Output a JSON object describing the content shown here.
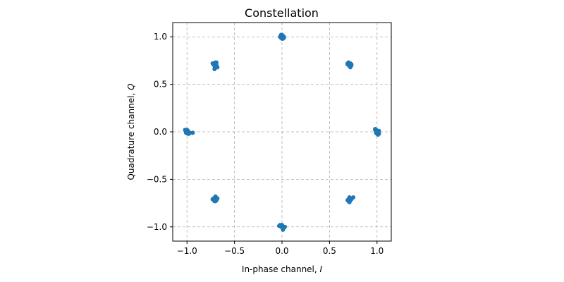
{
  "chart_data": {
    "type": "scatter",
    "title": "Constellation",
    "xlabel": "In-phase channel, ",
    "xlabel_var": "I",
    "ylabel": "Quadrature channel, ",
    "ylabel_var": "Q",
    "xlim": [
      -1.15,
      1.15
    ],
    "ylim": [
      -1.15,
      1.15
    ],
    "xticks": [
      -1.0,
      -0.5,
      0.0,
      0.5,
      1.0
    ],
    "xtick_labels": [
      "−1.0",
      "−0.5",
      "0.0",
      "0.5",
      "1.0"
    ],
    "yticks": [
      -1.0,
      -0.5,
      0.0,
      0.5,
      1.0
    ],
    "ytick_labels": [
      "−1.0",
      "−0.5",
      "0.0",
      "0.5",
      "1.0"
    ],
    "grid": true,
    "color": "#1f77b4",
    "series": [
      {
        "x": [
          1.0,
          0.99,
          1.01,
          1.02,
          0.98,
          1.0,
          1.01,
          0.99,
          1.0,
          1.02,
          0.98,
          1.01,
          0.707,
          0.69,
          0.72,
          0.71,
          0.73,
          0.7,
          0.72,
          0.71,
          0.69,
          0.72,
          0.73,
          0.71,
          0.0,
          -0.01,
          0.02,
          0.01,
          -0.02,
          0.0,
          0.01,
          -0.01,
          0.02,
          0.0,
          -0.01,
          0.01,
          -0.707,
          -0.72,
          -0.69,
          -0.7,
          -0.71,
          -0.73,
          -0.69,
          -0.71,
          -0.7,
          -0.72,
          -0.68,
          -0.7,
          -1.0,
          -0.99,
          -1.01,
          -1.02,
          -0.98,
          -1.0,
          -0.97,
          -1.01,
          -0.99,
          -1.0,
          -0.94,
          -1.01,
          -0.707,
          -0.72,
          -0.69,
          -0.7,
          -0.71,
          -0.73,
          -0.69,
          -0.71,
          -0.7,
          -0.72,
          -0.68,
          -0.7,
          0.0,
          -0.01,
          0.02,
          0.01,
          -0.02,
          0.0,
          0.02,
          -0.03,
          0.03,
          0.01,
          -0.01,
          0.0,
          0.707,
          0.69,
          0.72,
          0.71,
          0.73,
          0.7,
          0.72,
          0.71,
          0.75,
          0.72,
          0.7,
          0.73
        ],
        "y": [
          0.0,
          0.02,
          -0.01,
          0.01,
          0.03,
          -0.02,
          -0.03,
          -0.01,
          0.01,
          -0.02,
          0.02,
          0.0,
          0.707,
          0.72,
          0.7,
          0.69,
          0.71,
          0.73,
          0.72,
          0.7,
          0.71,
          0.68,
          0.7,
          0.72,
          1.0,
          1.02,
          0.99,
          1.01,
          1.0,
          0.98,
          0.99,
          1.01,
          1.0,
          1.02,
          0.99,
          0.98,
          0.707,
          0.72,
          0.7,
          0.71,
          0.69,
          0.72,
          0.73,
          0.66,
          0.7,
          0.71,
          0.68,
          0.73,
          0.0,
          0.01,
          -0.01,
          0.02,
          -0.02,
          0.0,
          -0.01,
          0.01,
          -0.02,
          0.02,
          -0.01,
          0.0,
          -0.707,
          -0.7,
          -0.72,
          -0.69,
          -0.73,
          -0.71,
          -0.7,
          -0.72,
          -0.68,
          -0.71,
          -0.7,
          -0.73,
          -1.0,
          -0.99,
          -1.01,
          -1.02,
          -0.98,
          -1.0,
          -1.01,
          -0.99,
          -1.0,
          -1.03,
          -1.0,
          -0.98,
          -0.707,
          -0.72,
          -0.7,
          -0.69,
          -0.71,
          -0.73,
          -0.7,
          -0.74,
          -0.69,
          -0.72,
          -0.71,
          -0.7
        ]
      }
    ]
  }
}
